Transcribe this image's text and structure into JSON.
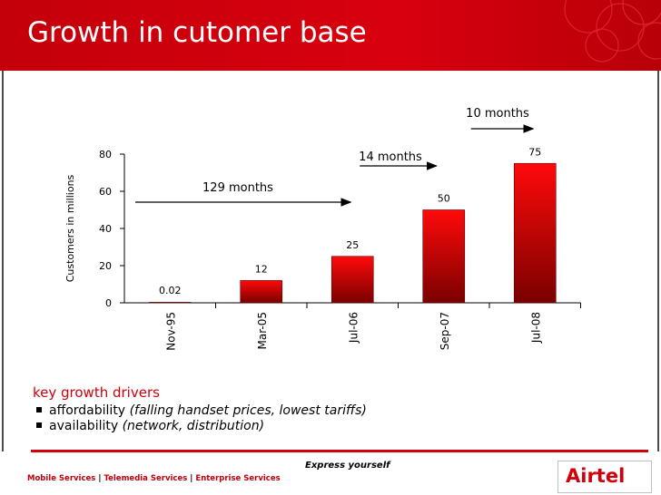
{
  "slide": {
    "title": "Growth in cutomer base",
    "drivers_heading": "key growth drivers",
    "drivers": [
      {
        "label": "affordability",
        "note": "(falling handset prices, lowest tariffs)"
      },
      {
        "label": "availability",
        "note": "(network, distribution)"
      }
    ],
    "tagline": "Express yourself",
    "footer_services": [
      "Mobile Services",
      "Telemedia Services",
      "Enterprise Services"
    ],
    "footer_separator": "|",
    "logo_text": "Airtel"
  },
  "colors": {
    "brand_red": "#d2000d",
    "bar_top": "#ff0a0a",
    "bar_bottom": "#7a0000"
  },
  "chart_data": {
    "type": "bar",
    "categories": [
      "Nov-95",
      "Mar-05",
      "Jul-06",
      "Sep-07",
      "Jul-08"
    ],
    "values": [
      0.02,
      12,
      25,
      50,
      75
    ],
    "data_labels": [
      "0.02",
      "12",
      "25",
      "50",
      "75"
    ],
    "ylabel": "Customers in millions",
    "ylim": [
      0,
      80
    ],
    "yticks": [
      0,
      20,
      40,
      60,
      80
    ],
    "grid": false,
    "annotations": [
      {
        "text": "129 months",
        "from": "Nov-95",
        "to": "Jul-06"
      },
      {
        "text": "14 months",
        "from": "Jul-06",
        "to": "Sep-07"
      },
      {
        "text": "10 months",
        "from": "Sep-07",
        "to": "Jul-08"
      }
    ]
  }
}
